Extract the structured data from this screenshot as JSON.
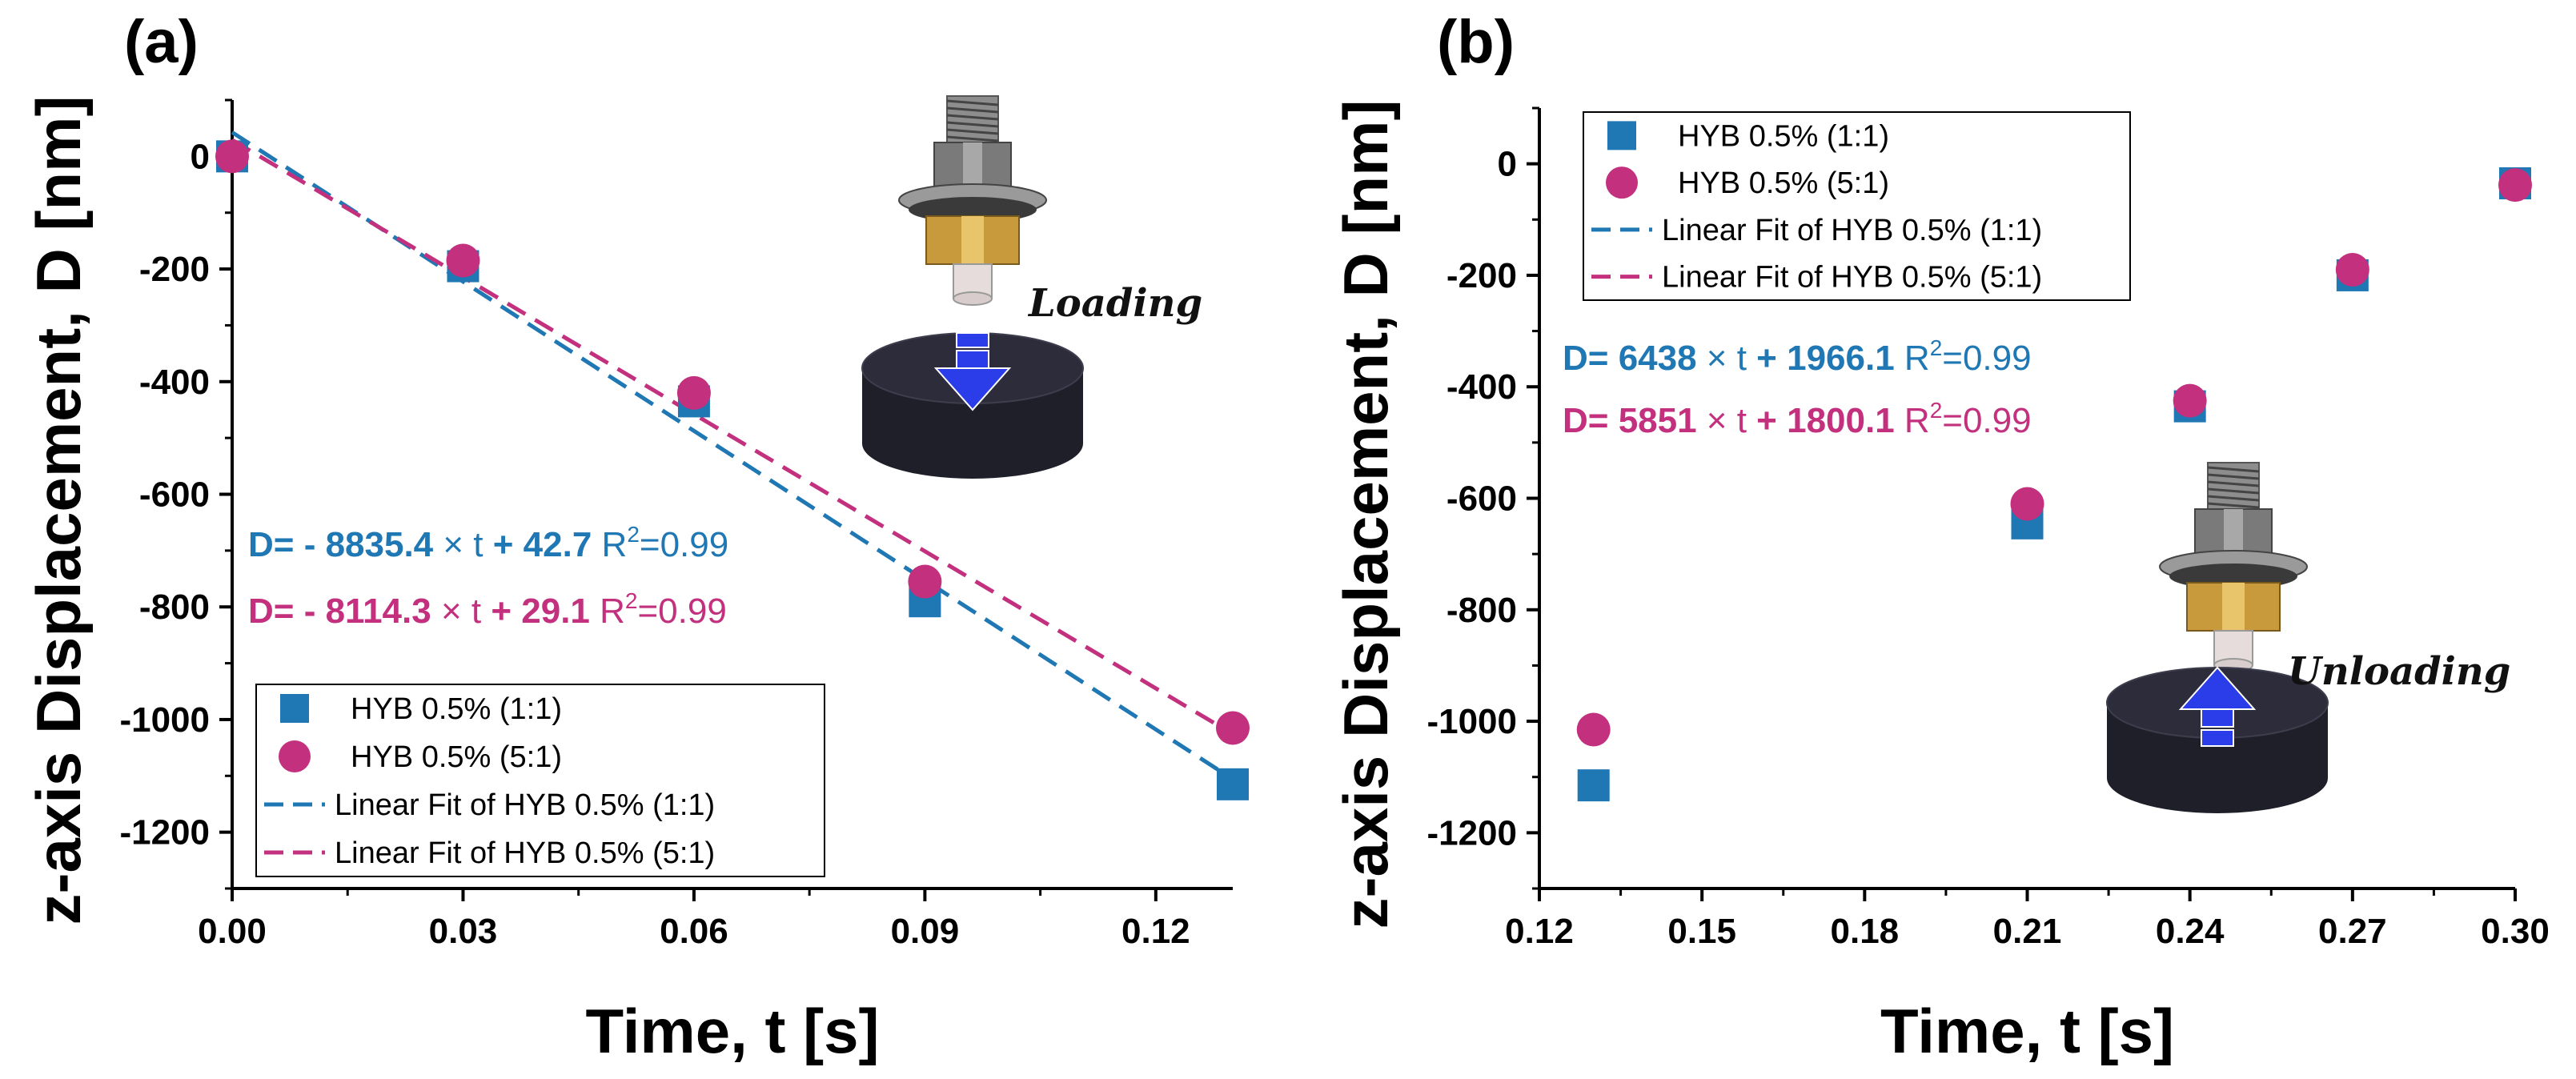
{
  "chart_data": [
    {
      "panel_label": "(a)",
      "type": "scatter",
      "xlabel": "Time, t [s]",
      "ylabel": "z-axis Displacement, D [nm]",
      "xlim": [
        0.0,
        0.13
      ],
      "ylim": [
        -1300,
        100
      ],
      "xticks": [
        0.0,
        0.03,
        0.06,
        0.09,
        0.12
      ],
      "xtick_labels": [
        "0.00",
        "0.03",
        "0.06",
        "0.09",
        "0.12"
      ],
      "yticks": [
        0,
        -200,
        -400,
        -600,
        -800,
        -1000,
        -1200
      ],
      "ytick_labels": [
        "0",
        "-200",
        "-400",
        "-600",
        "-800",
        "-1000",
        "-1200"
      ],
      "series": [
        {
          "name": "HYB 0.5% (1:1)",
          "marker": "square",
          "color": "#1f77b4",
          "x": [
            0.0,
            0.03,
            0.06,
            0.09,
            0.13
          ],
          "y": [
            0,
            -195,
            -435,
            -790,
            -1115
          ]
        },
        {
          "name": "HYB 0.5% (5:1)",
          "marker": "circle",
          "color": "#c2307e",
          "x": [
            0.0,
            0.03,
            0.06,
            0.09,
            0.13
          ],
          "y": [
            0,
            -185,
            -420,
            -755,
            -1015
          ]
        }
      ],
      "fits": [
        {
          "name": "Linear Fit of HYB 0.5% (1:1)",
          "color": "#1f77b4",
          "slope": -8835.4,
          "intercept": 42.7,
          "x_range": [
            0.0,
            0.13
          ]
        },
        {
          "name": "Linear Fit of HYB 0.5% (5:1)",
          "color": "#c2307e",
          "slope": -8114.3,
          "intercept": 29.1,
          "x_range": [
            0.0,
            0.13
          ]
        }
      ],
      "equations": [
        {
          "color": "#1f77b4",
          "lead": "D= - 8835.4",
          "mid": " × t ",
          "tail": "+ 42.7",
          "r2_prefix": "R",
          "r2_sup": "2",
          "r2_value": "=0.99"
        },
        {
          "color": "#c2307e",
          "lead": "D= - 8114.3",
          "mid": " × t ",
          "tail": "+ 29.1",
          "r2_prefix": "R",
          "r2_sup": "2",
          "r2_value": "=0.99"
        }
      ],
      "legend_entries": [
        "HYB 0.5% (1:1)",
        "HYB 0.5% (5:1)",
        "Linear Fit of HYB 0.5% (1:1)",
        "Linear Fit of HYB 0.5% (5:1)"
      ],
      "legend_placement": "bottom-left",
      "annotation": "Loading",
      "arrow_direction": "down"
    },
    {
      "panel_label": "(b)",
      "type": "scatter",
      "xlabel": "Time, t [s]",
      "ylabel": "z-axis Displacement, D [nm]",
      "xlim": [
        0.12,
        0.3
      ],
      "ylim": [
        -1300,
        100
      ],
      "xticks": [
        0.12,
        0.15,
        0.18,
        0.21,
        0.24,
        0.27,
        0.3
      ],
      "xtick_labels": [
        "0.12",
        "0.15",
        "0.18",
        "0.21",
        "0.24",
        "0.27",
        "0.30"
      ],
      "yticks": [
        0,
        -200,
        -400,
        -600,
        -800,
        -1000,
        -1200
      ],
      "ytick_labels": [
        "0",
        "-200",
        "-400",
        "-600",
        "-800",
        "-1000",
        "-1200"
      ],
      "series": [
        {
          "name": "HYB 0.5% (1:1)",
          "marker": "square",
          "color": "#1f77b4",
          "x": [
            0.13,
            0.21,
            0.24,
            0.27,
            0.3
          ],
          "y": [
            -1115,
            -645,
            -435,
            -200,
            -35
          ]
        },
        {
          "name": "HYB 0.5% (5:1)",
          "marker": "circle",
          "color": "#c2307e",
          "x": [
            0.13,
            0.21,
            0.24,
            0.27,
            0.3
          ],
          "y": [
            -1015,
            -610,
            -425,
            -190,
            -38
          ]
        }
      ],
      "fits": [
        {
          "name": "Linear Fit of HYB 0.5% (1:1)",
          "color": "#1f77b4",
          "slope": 6438,
          "intercept": 1966.1,
          "x_range": [
            0.13,
            0.3
          ]
        },
        {
          "name": "Linear Fit of HYB 0.5% (5:1)",
          "color": "#c2307e",
          "slope": 5851,
          "intercept": 1800.1,
          "x_range": [
            0.13,
            0.3
          ]
        }
      ],
      "equations": [
        {
          "color": "#1f77b4",
          "lead": "D= 6438",
          "mid": " × t ",
          "tail": "+ 1966.1",
          "r2_prefix": " R",
          "r2_sup": "2",
          "r2_value": "=0.99"
        },
        {
          "color": "#c2307e",
          "lead": "D= 5851",
          "mid": " × t ",
          "tail": "+ 1800.1",
          "r2_prefix": " R",
          "r2_sup": "2",
          "r2_value": "=0.99"
        }
      ],
      "legend_entries": [
        "HYB 0.5% (1:1)",
        "HYB 0.5% (5:1)",
        "Linear Fit of HYB 0.5% (1:1)",
        "Linear Fit of HYB 0.5% (5:1)"
      ],
      "legend_placement": "top-left",
      "annotation": "Unloading",
      "arrow_direction": "up"
    }
  ]
}
